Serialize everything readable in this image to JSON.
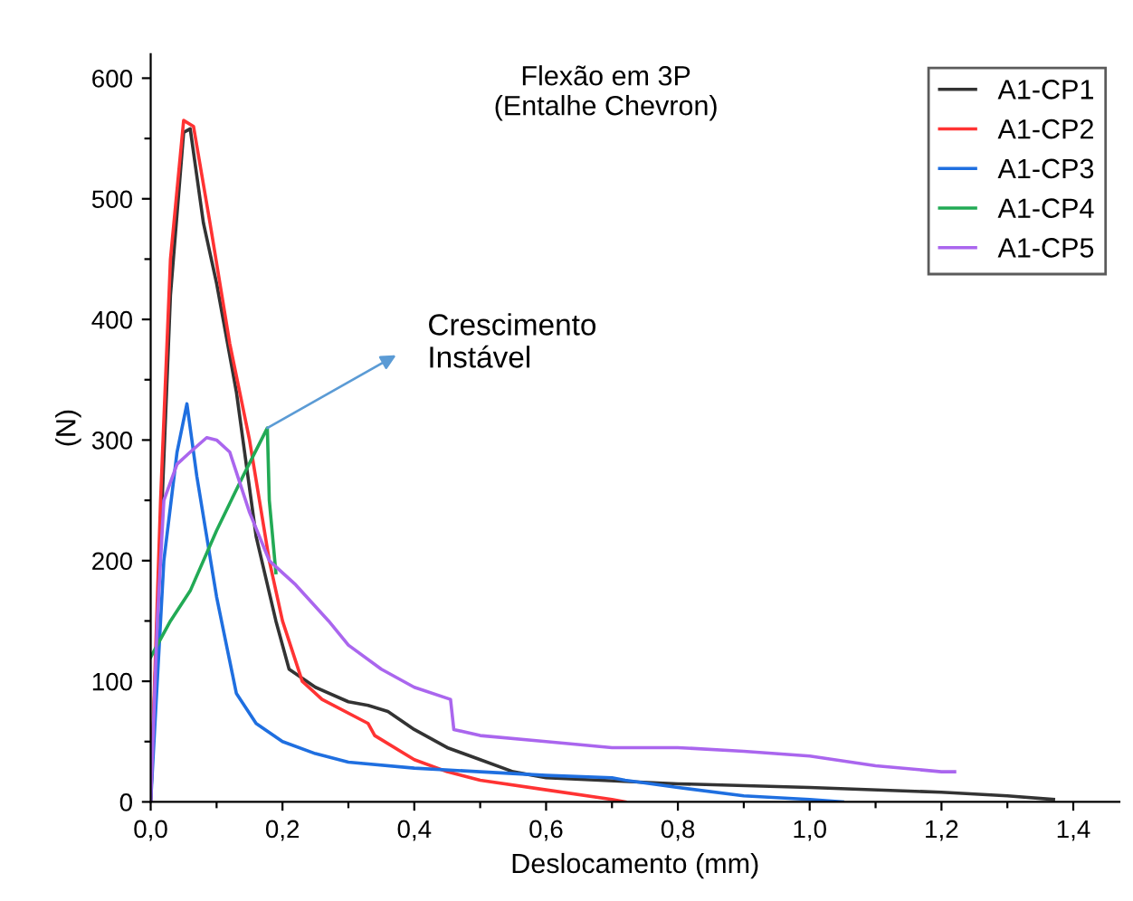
{
  "chart_data": {
    "type": "line",
    "title": "Flexão em 3P\n(Entalhe Chevron)",
    "xlabel": "Deslocamento (mm)",
    "ylabel": "(N)",
    "legend": "top right",
    "grid": false,
    "marker": "none",
    "line_style": "solid",
    "xlim": [
      0,
      1.47
    ],
    "ylim": [
      0,
      620
    ],
    "xticks": [
      {
        "value": 0,
        "label": "0,0"
      },
      {
        "value": 0.1,
        "label": null
      },
      {
        "value": 0.2,
        "label": "0,2"
      },
      {
        "value": 0.3,
        "label": null
      },
      {
        "value": 0.4,
        "label": "0,4"
      },
      {
        "value": 0.5,
        "label": null
      },
      {
        "value": 0.6,
        "label": "0,6"
      },
      {
        "value": 0.7,
        "label": null
      },
      {
        "value": 0.8,
        "label": "0,8"
      },
      {
        "value": 0.9,
        "label": null
      },
      {
        "value": 1.0,
        "label": "1,0"
      },
      {
        "value": 1.1,
        "label": null
      },
      {
        "value": 1.2,
        "label": "1,2"
      },
      {
        "value": 1.3,
        "label": null
      },
      {
        "value": 1.4,
        "label": "1,4"
      }
    ],
    "yticks": [
      0,
      {
        "value": 50,
        "label": null
      },
      100,
      {
        "value": 150,
        "label": null
      },
      200,
      {
        "value": 250,
        "label": null
      },
      300,
      {
        "value": 350,
        "label": null
      },
      400,
      {
        "value": 450,
        "label": null
      },
      500,
      {
        "value": 550,
        "label": null
      },
      600
    ],
    "annotations": [
      {
        "text": "Crescimento\nInstável",
        "x": 0.177,
        "y": 310
      }
    ],
    "series": [
      {
        "name": "A1-CP1",
        "color": "#333333",
        "x": [
          0,
          0.01,
          0.03,
          0.05,
          0.06,
          0.08,
          0.1,
          0.13,
          0.16,
          0.19,
          0.21,
          0.25,
          0.3,
          0.33,
          0.36,
          0.4,
          0.45,
          0.5,
          0.55,
          0.6,
          0.8,
          1.0,
          1.2,
          1.3,
          1.37
        ],
        "values": [
          0,
          150,
          420,
          555,
          558,
          480,
          430,
          340,
          220,
          150,
          110,
          95,
          83,
          80,
          75,
          60,
          45,
          35,
          25,
          20,
          15,
          12,
          8,
          5,
          2
        ]
      },
      {
        "name": "A1-CP2",
        "color": "#ff3333",
        "x": [
          0,
          0.015,
          0.03,
          0.05,
          0.065,
          0.09,
          0.12,
          0.15,
          0.18,
          0.2,
          0.23,
          0.26,
          0.33,
          0.34,
          0.4,
          0.45,
          0.5,
          0.6,
          0.7,
          0.72
        ],
        "values": [
          0,
          250,
          450,
          565,
          560,
          480,
          380,
          300,
          200,
          150,
          100,
          85,
          65,
          55,
          35,
          25,
          18,
          10,
          2,
          0
        ]
      },
      {
        "name": "A1-CP3",
        "color": "#1f6fe0",
        "x": [
          0,
          0.02,
          0.04,
          0.055,
          0.07,
          0.1,
          0.13,
          0.16,
          0.2,
          0.25,
          0.3,
          0.4,
          0.5,
          0.6,
          0.7,
          0.72,
          0.8,
          0.9,
          1.0,
          1.05
        ],
        "values": [
          0,
          200,
          290,
          330,
          270,
          170,
          90,
          65,
          50,
          40,
          33,
          28,
          25,
          22,
          20,
          18,
          12,
          5,
          2,
          0
        ]
      },
      {
        "name": "A1-CP4",
        "color": "#22aa55",
        "x": [
          0,
          0.03,
          0.06,
          0.1,
          0.14,
          0.177,
          0.18,
          0.19
        ],
        "values": [
          120,
          150,
          175,
          225,
          270,
          310,
          250,
          190
        ]
      },
      {
        "name": "A1-CP5",
        "color": "#aa66ee",
        "x": [
          0,
          0.01,
          0.02,
          0.04,
          0.06,
          0.085,
          0.1,
          0.12,
          0.15,
          0.18,
          0.2,
          0.22,
          0.27,
          0.3,
          0.35,
          0.4,
          0.455,
          0.46,
          0.5,
          0.6,
          0.7,
          0.8,
          0.9,
          1.0,
          1.1,
          1.2,
          1.22
        ],
        "values": [
          0,
          150,
          250,
          280,
          290,
          302,
          300,
          290,
          240,
          200,
          190,
          180,
          150,
          130,
          110,
          95,
          85,
          60,
          55,
          50,
          45,
          45,
          42,
          38,
          30,
          25,
          25
        ]
      }
    ]
  }
}
